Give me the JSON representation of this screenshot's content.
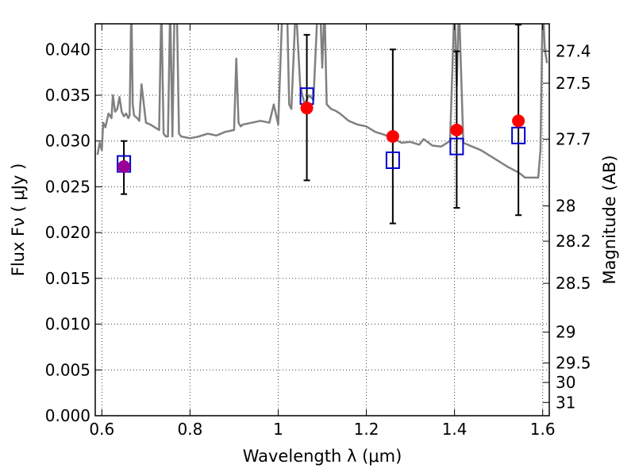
{
  "chart_data": {
    "type": "scatter",
    "xlabel": "Wavelength  λ (μm)",
    "ylabel": "Flux  Fν ( μJy )",
    "ylabel_right": "Magnitude (AB)",
    "xlim": [
      0.585,
      1.615
    ],
    "ylim": [
      0.0,
      0.0428
    ],
    "grid": true,
    "x_ticks": [
      {
        "value": 0.6,
        "label": "0.6"
      },
      {
        "value": 0.8,
        "label": "0.8"
      },
      {
        "value": 1.0,
        "label": "1"
      },
      {
        "value": 1.2,
        "label": "1.2"
      },
      {
        "value": 1.4,
        "label": "1.4"
      },
      {
        "value": 1.6,
        "label": "1.6"
      }
    ],
    "y_ticks": [
      {
        "value": 0.0,
        "label": "0.000"
      },
      {
        "value": 0.005,
        "label": "0.005"
      },
      {
        "value": 0.01,
        "label": "0.010"
      },
      {
        "value": 0.015,
        "label": "0.015"
      },
      {
        "value": 0.02,
        "label": "0.020"
      },
      {
        "value": 0.025,
        "label": "0.025"
      },
      {
        "value": 0.03,
        "label": "0.030"
      },
      {
        "value": 0.035,
        "label": "0.035"
      },
      {
        "value": 0.04,
        "label": "0.040"
      }
    ],
    "mag_ticks": [
      {
        "value": 27.4,
        "label": "27.4"
      },
      {
        "value": 27.5,
        "label": "27.5"
      },
      {
        "value": 27.7,
        "label": "27.7"
      },
      {
        "value": 28.0,
        "label": "28"
      },
      {
        "value": 28.2,
        "label": "28.2"
      },
      {
        "value": 28.5,
        "label": "28.5"
      },
      {
        "value": 29.0,
        "label": "29"
      },
      {
        "value": 29.5,
        "label": "29.5"
      },
      {
        "value": 30.0,
        "label": "30"
      },
      {
        "value": 31.0,
        "label": "31"
      }
    ],
    "observed": {
      "x": [
        0.65,
        1.065,
        1.26,
        1.405,
        1.545
      ],
      "y": [
        0.0272,
        0.0336,
        0.0305,
        0.0312,
        0.0322
      ],
      "yerr_low": [
        0.0242,
        0.0257,
        0.021,
        0.0227,
        0.0219
      ],
      "yerr_high": [
        0.03,
        0.0416,
        0.04,
        0.0398,
        0.0427
      ],
      "colors": [
        "#990099",
        "#ff0000",
        "#ff0000",
        "#ff0000",
        "#ff0000"
      ]
    },
    "model_bands": {
      "x": [
        0.65,
        1.065,
        1.26,
        1.405,
        1.545
      ],
      "y": [
        0.0275,
        0.0349,
        0.0279,
        0.0294,
        0.0306
      ],
      "color": "#0000cc"
    },
    "model_spectrum": {
      "color": "#808080",
      "x": [
        0.59,
        0.595,
        0.6,
        0.603,
        0.608,
        0.615,
        0.622,
        0.625,
        0.63,
        0.635,
        0.64,
        0.645,
        0.65,
        0.655,
        0.66,
        0.663,
        0.667,
        0.67,
        0.673,
        0.68,
        0.685,
        0.69,
        0.7,
        0.71,
        0.72,
        0.73,
        0.735,
        0.74,
        0.745,
        0.75,
        0.755,
        0.76,
        0.765,
        0.77,
        0.775,
        0.78,
        0.8,
        0.82,
        0.84,
        0.86,
        0.88,
        0.9,
        0.905,
        0.91,
        0.915,
        0.92,
        0.94,
        0.96,
        0.98,
        0.99,
        1.0,
        1.01,
        1.02,
        1.025,
        1.03,
        1.04,
        1.05,
        1.06,
        1.07,
        1.08,
        1.09,
        1.095,
        1.1,
        1.105,
        1.11,
        1.12,
        1.13,
        1.14,
        1.16,
        1.18,
        1.2,
        1.22,
        1.24,
        1.26,
        1.28,
        1.3,
        1.32,
        1.33,
        1.35,
        1.37,
        1.39,
        1.4,
        1.405,
        1.41,
        1.42,
        1.44,
        1.46,
        1.48,
        1.5,
        1.52,
        1.54,
        1.55,
        1.56,
        1.58,
        1.59,
        1.595,
        1.6,
        1.605,
        1.61
      ],
      "y": [
        0.0285,
        0.0298,
        0.029,
        0.032,
        0.0315,
        0.033,
        0.0325,
        0.035,
        0.0332,
        0.0335,
        0.0348,
        0.0332,
        0.0327,
        0.033,
        0.0325,
        0.0328,
        0.045,
        0.034,
        0.0328,
        0.0325,
        0.0322,
        0.0362,
        0.032,
        0.0318,
        0.0315,
        0.0312,
        0.045,
        0.0308,
        0.0305,
        0.0305,
        0.045,
        0.0305,
        0.045,
        0.045,
        0.0308,
        0.0305,
        0.0303,
        0.0305,
        0.0308,
        0.0306,
        0.031,
        0.0312,
        0.039,
        0.032,
        0.0316,
        0.0318,
        0.032,
        0.0322,
        0.032,
        0.034,
        0.0318,
        0.045,
        0.045,
        0.034,
        0.0335,
        0.045,
        0.036,
        0.034,
        0.035,
        0.0345,
        0.045,
        0.045,
        0.038,
        0.045,
        0.034,
        0.0335,
        0.0333,
        0.033,
        0.0322,
        0.0318,
        0.0316,
        0.031,
        0.0307,
        0.0303,
        0.0298,
        0.0299,
        0.0296,
        0.0302,
        0.0295,
        0.0294,
        0.03,
        0.045,
        0.036,
        0.045,
        0.0298,
        0.0294,
        0.029,
        0.0284,
        0.0278,
        0.0272,
        0.0267,
        0.0264,
        0.026,
        0.026,
        0.026,
        0.029,
        0.045,
        0.04,
        0.0385
      ]
    }
  }
}
